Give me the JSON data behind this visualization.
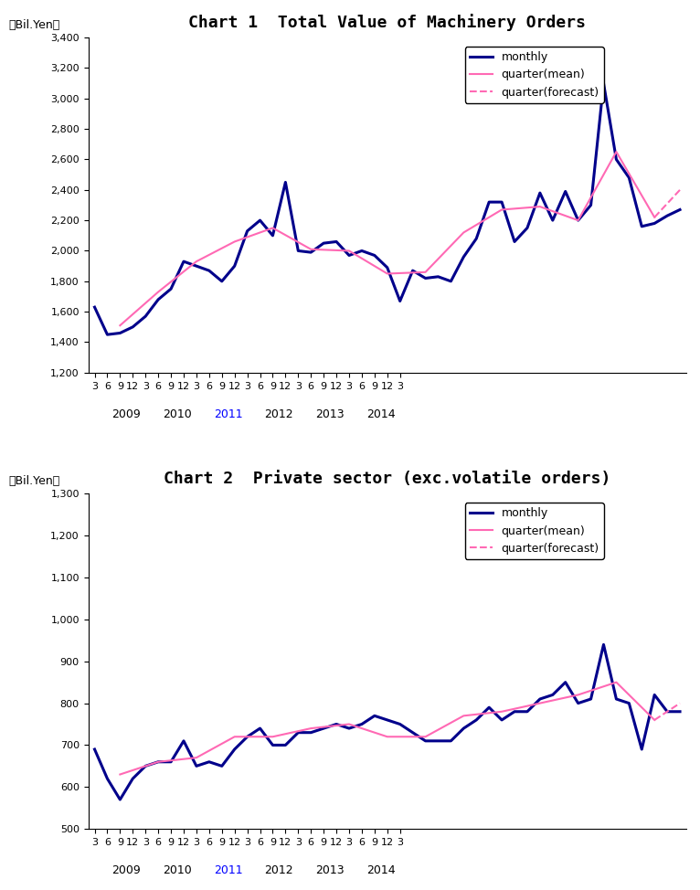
{
  "chart1_title": "Chart 1  Total Value of Machinery Orders",
  "chart2_title": "Chart 2  Private sector (exc.volatile orders)",
  "ylabel": "（Bil.Yen）",
  "chart1_ylim": [
    1200,
    3400
  ],
  "chart1_yticks": [
    1200,
    1400,
    1600,
    1800,
    2000,
    2200,
    2400,
    2600,
    2800,
    3000,
    3200,
    3400
  ],
  "chart2_ylim": [
    500,
    1300
  ],
  "chart2_yticks": [
    500,
    600,
    700,
    800,
    900,
    1000,
    1100,
    1200,
    1300
  ],
  "monthly_color": "#00008B",
  "quarter_mean_color": "#FF69B4",
  "quarter_forecast_color": "#FF69B4",
  "monthly_lw": 2.2,
  "quarter_mean_lw": 1.5,
  "quarter_forecast_lw": 1.5,
  "legend_monthly": "monthly",
  "legend_qmean": "quarter(mean)",
  "legend_qforecast": "quarter(forecast)",
  "x_tick_labels": [
    "3",
    "6",
    "9",
    "12",
    "3",
    "6",
    "9",
    "12",
    "3",
    "6",
    "9",
    "12",
    "3",
    "6",
    "9",
    "12",
    "3",
    "6",
    "9",
    "12",
    "3",
    "6",
    "9",
    "12",
    "3"
  ],
  "year_labels": [
    "2009",
    "2010",
    "2011",
    "2012",
    "2013",
    "2014"
  ],
  "chart1_monthly": [
    1630,
    1450,
    1460,
    1500,
    1570,
    1680,
    1750,
    1930,
    1900,
    1870,
    1800,
    1900,
    2130,
    2200,
    2100,
    2450,
    2000,
    1990,
    2050,
    2060,
    1970,
    2000,
    1970,
    1890,
    1670,
    1870,
    1820,
    1830,
    1800,
    1960,
    2080,
    2320,
    2320,
    2060,
    2150,
    2380,
    2200,
    2390,
    2200,
    2300,
    3100,
    2600,
    2480,
    2160,
    2180,
    2230,
    2270
  ],
  "chart1_quarter_mean": [
    null,
    null,
    1510,
    null,
    null,
    1730,
    null,
    null,
    1930,
    null,
    null,
    2060,
    null,
    null,
    2150,
    null,
    null,
    2010,
    null,
    null,
    2000,
    null,
    null,
    1850,
    null,
    null,
    1860,
    null,
    null,
    2120,
    null,
    null,
    2270,
    null,
    null,
    2290,
    null,
    null,
    2200,
    null,
    null,
    2650,
    null,
    null,
    2220,
    null,
    null
  ],
  "chart1_quarter_forecast": [
    null,
    null,
    null,
    null,
    null,
    null,
    null,
    null,
    null,
    null,
    null,
    null,
    null,
    null,
    null,
    null,
    null,
    null,
    null,
    null,
    null,
    null,
    null,
    null,
    null,
    null,
    null,
    null,
    null,
    null,
    null,
    null,
    null,
    null,
    null,
    null,
    null,
    null,
    null,
    null,
    null,
    null,
    null,
    null,
    2220,
    null,
    2400
  ],
  "chart2_monthly": [
    690,
    620,
    570,
    620,
    650,
    660,
    660,
    710,
    650,
    660,
    650,
    690,
    720,
    740,
    700,
    700,
    730,
    730,
    740,
    750,
    740,
    750,
    770,
    760,
    750,
    730,
    710,
    710,
    710,
    740,
    760,
    790,
    760,
    780,
    780,
    810,
    820,
    850,
    800,
    810,
    940,
    810,
    800,
    690,
    820,
    780,
    780
  ],
  "chart2_quarter_mean": [
    null,
    null,
    630,
    null,
    null,
    660,
    null,
    null,
    670,
    null,
    null,
    720,
    null,
    null,
    720,
    null,
    null,
    740,
    null,
    null,
    750,
    null,
    null,
    720,
    null,
    null,
    720,
    null,
    null,
    770,
    null,
    null,
    780,
    null,
    null,
    800,
    null,
    null,
    820,
    null,
    null,
    850,
    null,
    null,
    760,
    null,
    null
  ],
  "chart2_quarter_forecast": [
    null,
    null,
    null,
    null,
    null,
    null,
    null,
    null,
    null,
    null,
    null,
    null,
    null,
    null,
    null,
    null,
    null,
    null,
    null,
    null,
    null,
    null,
    null,
    null,
    null,
    null,
    null,
    null,
    null,
    null,
    null,
    null,
    null,
    null,
    null,
    null,
    null,
    null,
    null,
    null,
    null,
    null,
    null,
    null,
    760,
    null,
    800
  ]
}
